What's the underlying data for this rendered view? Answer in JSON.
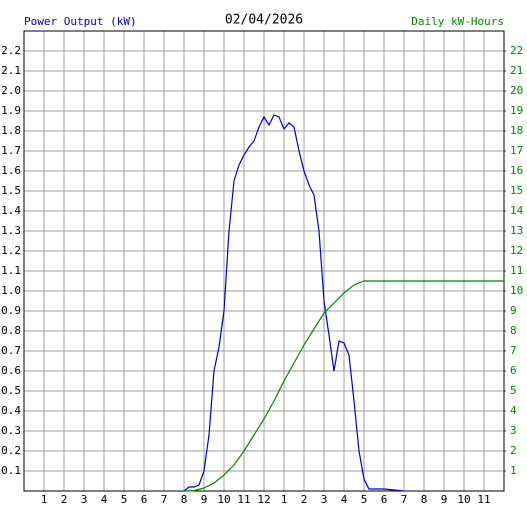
{
  "chart_data": {
    "type": "line",
    "title": "02/04/2026",
    "y_label": "Power Output (kW)",
    "y2_label": "Daily kW-Hours",
    "grid": true,
    "xlim": [
      0,
      24
    ],
    "xticks": [
      1,
      2,
      3,
      4,
      5,
      6,
      7,
      8,
      9,
      10,
      11,
      12,
      {
        "value": 13,
        "label": "1"
      },
      {
        "value": 14,
        "label": "2"
      },
      {
        "value": 15,
        "label": "3"
      },
      {
        "value": 16,
        "label": "4"
      },
      {
        "value": 17,
        "label": "5"
      },
      {
        "value": 18,
        "label": "6"
      },
      {
        "value": 19,
        "label": "7"
      },
      {
        "value": 20,
        "label": "8"
      },
      {
        "value": 21,
        "label": "9"
      },
      {
        "value": 22,
        "label": "10"
      },
      {
        "value": 23,
        "label": "11"
      }
    ],
    "ylim": [
      0,
      2.3
    ],
    "yticks": [
      0.1,
      0.2,
      0.3,
      0.4,
      0.5,
      0.6,
      0.7,
      0.8,
      0.9,
      {
        "value": 1,
        "label": "1.0"
      },
      1.1,
      1.2,
      1.3,
      1.4,
      1.5,
      1.6,
      1.7,
      1.8,
      1.9,
      {
        "value": 2,
        "label": "2.0"
      },
      2.1,
      2.2
    ],
    "y2lim": [
      0,
      23
    ],
    "y2ticks": [
      1,
      2,
      3,
      4,
      5,
      6,
      7,
      8,
      9,
      10,
      11,
      12,
      13,
      14,
      15,
      16,
      17,
      18,
      19,
      20,
      21,
      22
    ],
    "series": [
      {
        "color": "#0000cc",
        "axis": "y",
        "x": [
          8,
          8.25,
          8.5,
          8.75,
          9,
          9.25,
          9.5,
          9.75,
          10,
          10.25,
          10.5,
          10.75,
          11,
          11.25,
          11.5,
          11.75,
          12,
          12.25,
          12.5,
          12.75,
          13,
          13.25,
          13.5,
          13.75,
          14,
          14.25,
          14.5,
          14.75,
          15,
          15.25,
          15.5,
          15.75,
          16,
          16.25,
          16.5,
          16.75,
          17,
          17.25,
          17.5,
          18,
          19
        ],
        "values": [
          0,
          0.02,
          0.02,
          0.03,
          0.1,
          0.28,
          0.6,
          0.72,
          0.9,
          1.3,
          1.55,
          1.63,
          1.68,
          1.72,
          1.75,
          1.82,
          1.87,
          1.83,
          1.88,
          1.87,
          1.81,
          1.84,
          1.82,
          1.7,
          1.6,
          1.53,
          1.48,
          1.3,
          0.95,
          0.78,
          0.6,
          0.75,
          0.74,
          0.68,
          0.45,
          0.2,
          0.06,
          0.01,
          0.01,
          0.01,
          0
        ]
      },
      {
        "color": "#008800",
        "axis": "y2",
        "x": [
          8,
          8.5,
          9,
          9.5,
          10,
          10.5,
          11,
          11.5,
          12,
          12.5,
          13,
          13.5,
          14,
          14.5,
          15,
          15.5,
          16,
          16.5,
          17,
          24
        ],
        "values": [
          0,
          0.02,
          0.15,
          0.4,
          0.8,
          1.3,
          2.0,
          2.8,
          3.6,
          4.5,
          5.5,
          6.4,
          7.3,
          8.1,
          8.9,
          9.4,
          9.9,
          10.3,
          10.5,
          10.5
        ]
      }
    ]
  }
}
